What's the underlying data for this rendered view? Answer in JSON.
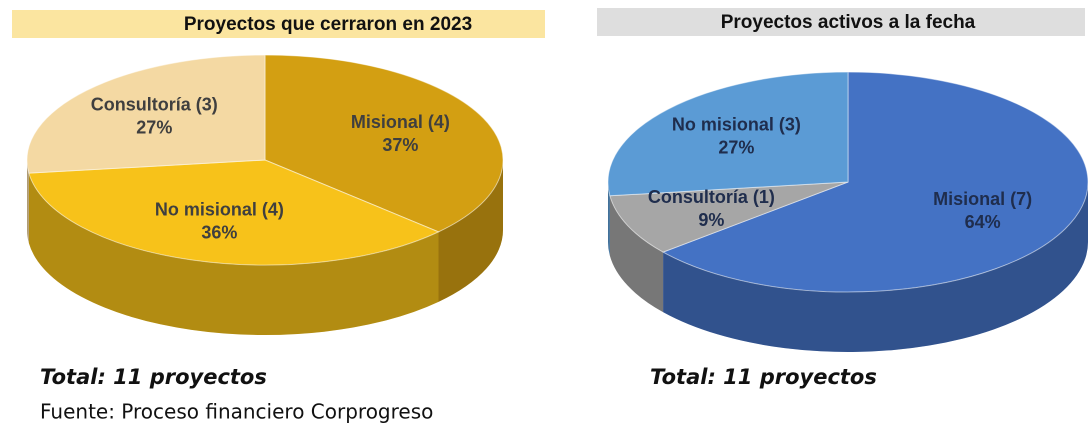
{
  "chart_data": [
    {
      "type": "pie",
      "title": "Proyectos que cerraron en 2023",
      "categories": [
        "Misional (4)",
        "No misional (4)",
        "Consultoría (3)"
      ],
      "values": [
        37,
        36,
        27
      ],
      "value_labels": [
        "37%",
        "36%",
        "27%"
      ],
      "colors": [
        "#d39f12",
        "#f7c21a",
        "#f4d9a3"
      ],
      "note": "Total: 11 proyectos"
    },
    {
      "type": "pie",
      "title": "Proyectos activos a la fecha",
      "categories": [
        "Misional (7)",
        "Consultoría (1)",
        "No misional (3)"
      ],
      "values": [
        64,
        9,
        27
      ],
      "value_labels": [
        "64%",
        "9%",
        "27%"
      ],
      "colors": [
        "#4472c4",
        "#a6a6a6",
        "#5b9bd5"
      ],
      "note": "Total: 11 proyectos"
    }
  ],
  "source": "Fuente: Proceso financiero Corprogreso"
}
